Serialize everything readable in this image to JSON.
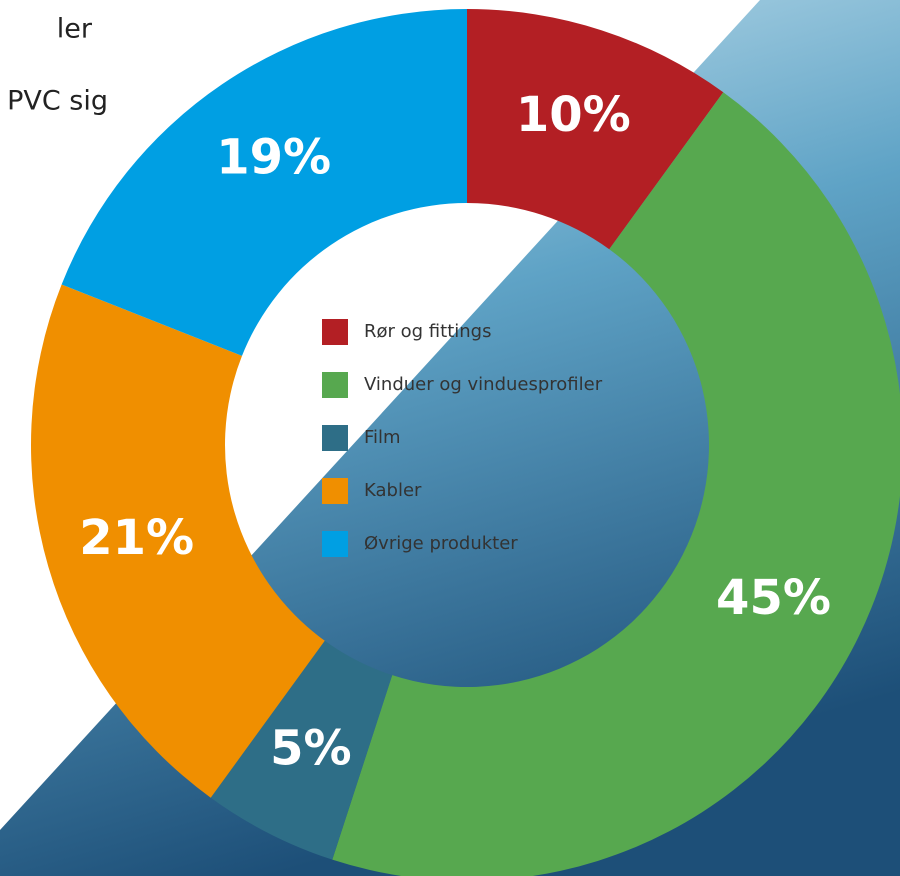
{
  "chart_data": {
    "type": "donut",
    "text_fragments": [
      "ler",
      "PVC sig"
    ],
    "categories": [
      "Rør og fittings",
      "Vinduer og vinduesprofiler",
      "Film",
      "Kabler",
      "Øvrige produkter"
    ],
    "values": [
      10,
      45,
      5,
      21,
      19
    ],
    "value_labels": [
      "10%",
      "45%",
      "5%",
      "21%",
      "19%"
    ],
    "colors": [
      "#b31f24",
      "#57a84f",
      "#2e6e87",
      "#f08f00",
      "#009fe3"
    ]
  }
}
